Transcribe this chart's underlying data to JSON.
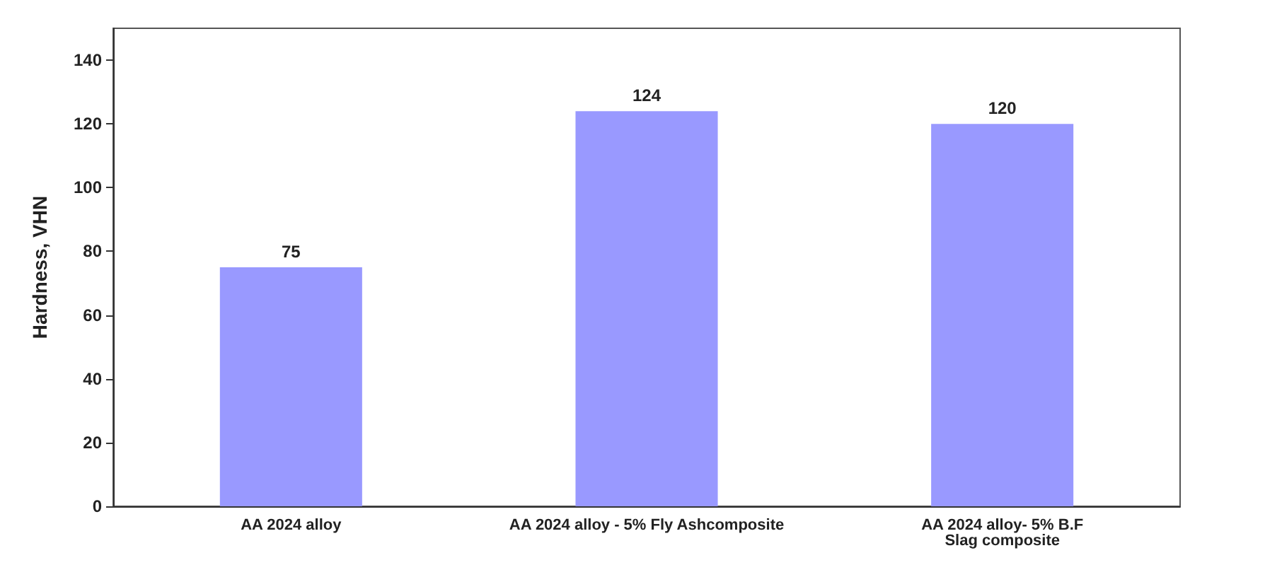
{
  "chart_data": {
    "type": "bar",
    "ylabel": "Hardness, VHN",
    "categories": [
      "AA 2024 alloy",
      "AA 2024 alloy - 5% Fly Ashcomposite",
      "AA 2024 alloy- 5% B.F\nSlag composite"
    ],
    "values": [
      75,
      124,
      120
    ],
    "color": "#9999ff",
    "ylim": [
      0,
      150
    ],
    "yticks": [
      0,
      20,
      40,
      60,
      80,
      100,
      120,
      140
    ],
    "data_labels": true,
    "grid": false
  }
}
